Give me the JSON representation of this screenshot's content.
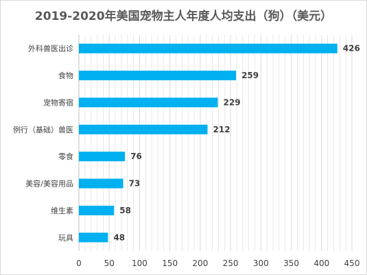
{
  "chart_data": {
    "type": "bar",
    "orientation": "horizontal",
    "title": "2019-2020年美国宠物主人年度人均支出（狗）（美元）",
    "categories": [
      "外科兽医出诊",
      "食物",
      "宠物寄宿",
      "例行（基础）兽医",
      "零食",
      "美容/美容用品",
      "维生素",
      "玩具"
    ],
    "values": [
      426,
      259,
      229,
      212,
      76,
      73,
      58,
      48
    ],
    "xlim": [
      0,
      450
    ],
    "xticks": [
      "0",
      "50",
      "100",
      "150",
      "200",
      "250",
      "300",
      "350",
      "400",
      "450"
    ],
    "grid": true,
    "bar_color": "#00b0f0",
    "grid_color": "#d9d9d9"
  }
}
